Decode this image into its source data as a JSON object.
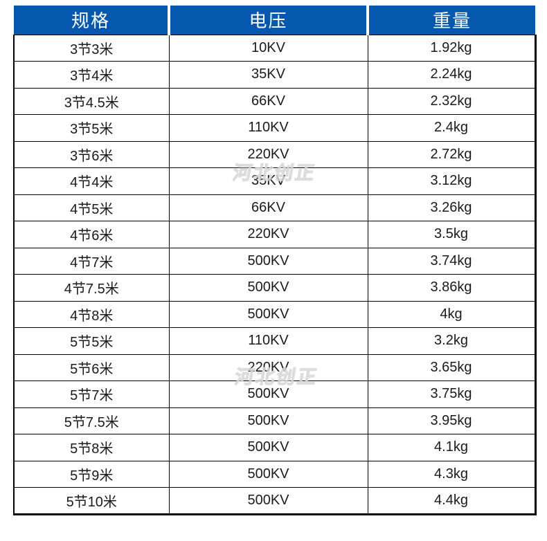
{
  "chart_data": {
    "type": "table",
    "title": "",
    "columns": [
      "规格",
      "电压",
      "重量"
    ],
    "rows": [
      [
        "3节3米",
        "10KV",
        "1.92kg"
      ],
      [
        "3节4米",
        "35KV",
        "2.24kg"
      ],
      [
        "3节4.5米",
        "66KV",
        "2.32kg"
      ],
      [
        "3节5米",
        "110KV",
        "2.4kg"
      ],
      [
        "3节6米",
        "220KV",
        "2.72kg"
      ],
      [
        "4节4米",
        "35KV",
        "3.12kg"
      ],
      [
        "4节5米",
        "66KV",
        "3.26kg"
      ],
      [
        "4节6米",
        "220KV",
        "3.5kg"
      ],
      [
        "4节7米",
        "500KV",
        "3.74kg"
      ],
      [
        "4节7.5米",
        "500KV",
        "3.86kg"
      ],
      [
        "4节8米",
        "500KV",
        "4kg"
      ],
      [
        "5节5米",
        "110KV",
        "3.2kg"
      ],
      [
        "5节6米",
        "220KV",
        "3.65kg"
      ],
      [
        "5节7米",
        "500KV",
        "3.75kg"
      ],
      [
        "5节7.5米",
        "500KV",
        "3.95kg"
      ],
      [
        "5节8米",
        "500KV",
        "4.1kg"
      ],
      [
        "5节9米",
        "500KV",
        "4.3kg"
      ],
      [
        "5节10米",
        "500KV",
        "4.4kg"
      ]
    ]
  },
  "watermark": {
    "text": "河北创正"
  },
  "colors": {
    "header_bg": "#0558AD",
    "header_text": "#ffffff",
    "border": "#000000",
    "cell_text": "#1a1a1a",
    "watermark": "#d6d6d6"
  }
}
